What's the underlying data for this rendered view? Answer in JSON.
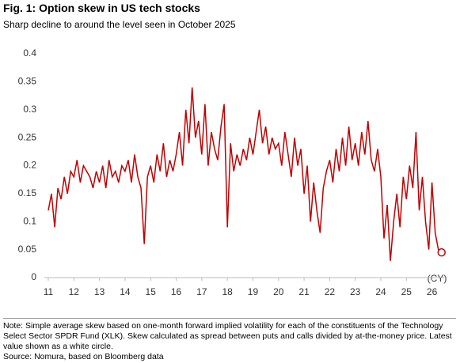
{
  "chart_data": {
    "type": "line",
    "title": "Fig. 1: Option skew in US tech stocks",
    "subtitle": "Sharp decline to around the level seen in October 2025",
    "note": "Note: Simple average skew based on one-month forward implied volatility for each of the constituents of the Technology Select Sector SPDR Fund (XLK). Skew calculated as spread between puts and calls divided by at-the-money price. Latest value shown as a white circle.",
    "source": "Source: Nomura, based on Bloomberg data",
    "x_label": "(CY)",
    "xlim": [
      11,
      26.6
    ],
    "xticks": [
      11,
      12,
      13,
      14,
      15,
      16,
      17,
      18,
      19,
      20,
      21,
      22,
      23,
      24,
      25,
      26
    ],
    "ylim": [
      0,
      0.4
    ],
    "yticks": [
      0,
      0.05,
      0.1,
      0.15,
      0.2,
      0.25,
      0.3,
      0.35,
      0.4
    ],
    "grid": false,
    "series": [
      {
        "color": "#c00000",
        "x": [
          11,
          11.125,
          11.25,
          11.375,
          11.5,
          11.625,
          11.75,
          11.875,
          12,
          12.125,
          12.25,
          12.375,
          12.5,
          12.625,
          12.75,
          12.875,
          13,
          13.125,
          13.25,
          13.375,
          13.5,
          13.625,
          13.75,
          13.875,
          14,
          14.125,
          14.25,
          14.375,
          14.5,
          14.625,
          14.75,
          14.875,
          15,
          15.125,
          15.25,
          15.375,
          15.5,
          15.625,
          15.75,
          15.875,
          16,
          16.125,
          16.25,
          16.375,
          16.5,
          16.625,
          16.75,
          16.875,
          17,
          17.125,
          17.25,
          17.375,
          17.5,
          17.625,
          17.75,
          17.875,
          18,
          18.125,
          18.25,
          18.375,
          18.5,
          18.625,
          18.75,
          18.875,
          19,
          19.125,
          19.25,
          19.375,
          19.5,
          19.625,
          19.75,
          19.875,
          20,
          20.125,
          20.25,
          20.375,
          20.5,
          20.625,
          20.75,
          20.875,
          21,
          21.125,
          21.25,
          21.375,
          21.5,
          21.625,
          21.75,
          21.875,
          22,
          22.125,
          22.25,
          22.375,
          22.5,
          22.625,
          22.75,
          22.875,
          23,
          23.125,
          23.25,
          23.375,
          23.5,
          23.625,
          23.75,
          23.875,
          24,
          24.125,
          24.25,
          24.375,
          24.5,
          24.625,
          24.75,
          24.875,
          25,
          25.125,
          25.25,
          25.375,
          25.5,
          25.625,
          25.75,
          25.875,
          26,
          26.125,
          26.25,
          26.375
        ],
        "values": [
          0.12,
          0.15,
          0.09,
          0.16,
          0.14,
          0.18,
          0.15,
          0.19,
          0.18,
          0.21,
          0.17,
          0.2,
          0.19,
          0.18,
          0.16,
          0.19,
          0.17,
          0.2,
          0.16,
          0.21,
          0.18,
          0.19,
          0.17,
          0.2,
          0.19,
          0.21,
          0.17,
          0.22,
          0.18,
          0.16,
          0.06,
          0.18,
          0.2,
          0.17,
          0.22,
          0.19,
          0.24,
          0.18,
          0.21,
          0.19,
          0.22,
          0.26,
          0.2,
          0.3,
          0.24,
          0.34,
          0.25,
          0.28,
          0.22,
          0.31,
          0.2,
          0.26,
          0.23,
          0.21,
          0.27,
          0.31,
          0.09,
          0.24,
          0.19,
          0.22,
          0.2,
          0.23,
          0.21,
          0.25,
          0.22,
          0.26,
          0.3,
          0.24,
          0.27,
          0.22,
          0.25,
          0.23,
          0.24,
          0.2,
          0.26,
          0.22,
          0.18,
          0.25,
          0.2,
          0.23,
          0.15,
          0.2,
          0.1,
          0.17,
          0.12,
          0.08,
          0.16,
          0.19,
          0.21,
          0.17,
          0.23,
          0.19,
          0.25,
          0.2,
          0.27,
          0.21,
          0.24,
          0.2,
          0.26,
          0.22,
          0.28,
          0.21,
          0.19,
          0.23,
          0.18,
          0.07,
          0.13,
          0.03,
          0.1,
          0.15,
          0.09,
          0.18,
          0.14,
          0.2,
          0.16,
          0.26,
          0.12,
          0.18,
          0.1,
          0.05,
          0.17,
          0.08,
          0.05,
          0.045
        ]
      }
    ]
  }
}
